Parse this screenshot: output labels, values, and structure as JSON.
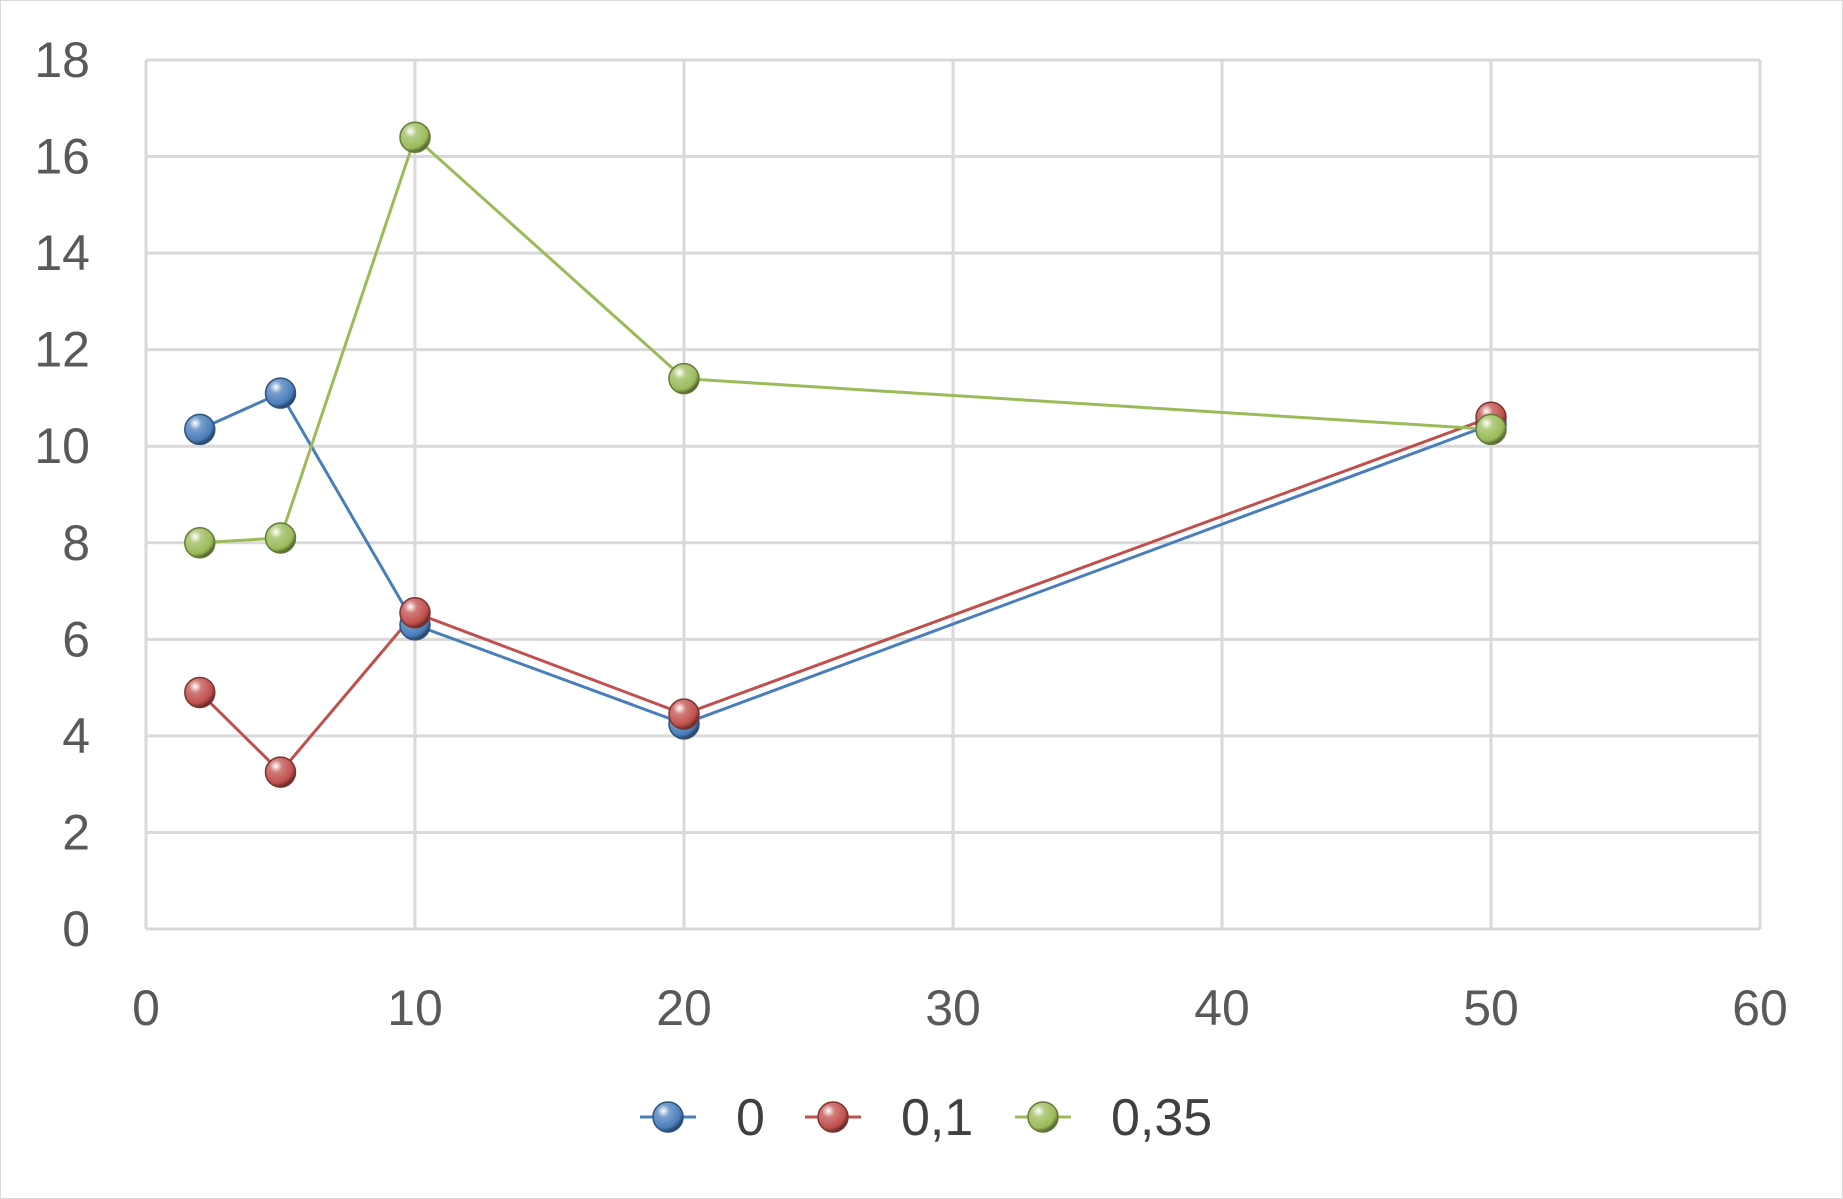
{
  "chart_data": {
    "type": "line",
    "x": [
      2,
      5,
      10,
      20,
      50
    ],
    "series": [
      {
        "name": "0",
        "color": "#4a7ebb",
        "values": [
          10.35,
          11.1,
          6.3,
          4.25,
          10.45
        ]
      },
      {
        "name": "0,1",
        "color": "#c0504d",
        "values": [
          4.9,
          3.25,
          6.55,
          4.45,
          10.6
        ]
      },
      {
        "name": "0,35",
        "color": "#9bbb59",
        "values": [
          8.0,
          8.1,
          16.4,
          11.4,
          10.35
        ]
      }
    ],
    "xlim": [
      0,
      60
    ],
    "ylim": [
      0,
      18
    ],
    "x_ticks": [
      "0",
      "10",
      "20",
      "30",
      "40",
      "50",
      "60"
    ],
    "y_ticks": [
      "0",
      "2",
      "4",
      "6",
      "8",
      "10",
      "12",
      "14",
      "16",
      "18"
    ],
    "grid": true,
    "legend": "bottom"
  }
}
